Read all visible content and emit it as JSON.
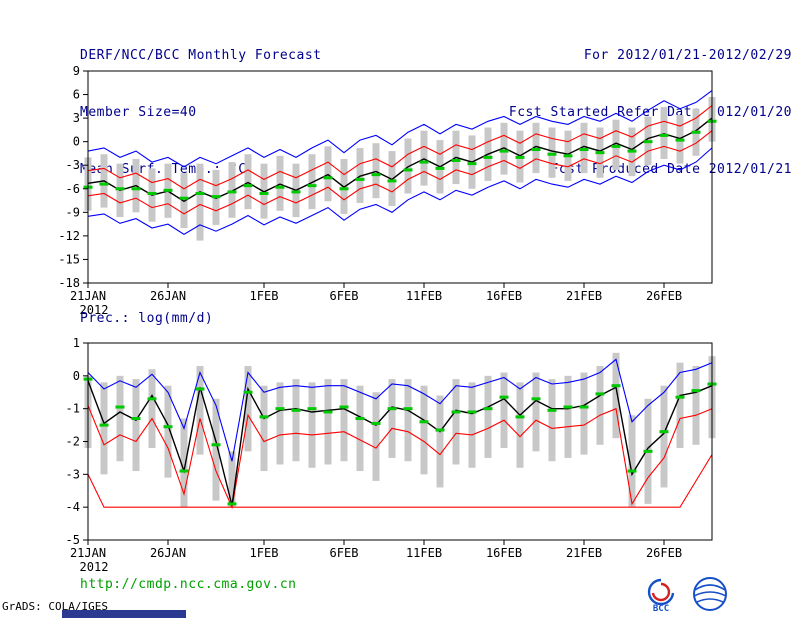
{
  "header": {
    "left": [
      "DERF/NCC/BCC Monthly Forecast",
      "Member Size=40",
      "Mean Surf. Temp.: °C"
    ],
    "right": [
      "For 2012/01/21-2012/02/29",
      "Fcst Started Refer Date 2012/01/20",
      "Fcst Produced Date 2012/01/21"
    ]
  },
  "footer": {
    "url": "http://cmdp.ncc.cma.gov.cn",
    "credit": "GrADS: COLA/IGES",
    "logos": [
      {
        "label": "BCC"
      }
    ]
  },
  "colors": {
    "header_text": "#00008b",
    "url_text": "#00a000",
    "ensemble_bar": "#c8c8c8",
    "max_min_line": "#0000ff",
    "quartile_line": "#ff0000",
    "mean_line": "#000000",
    "marker": "#00c800"
  },
  "chart_data": [
    {
      "type": "line",
      "title": "Mean Surf. Temp.: °C",
      "xlabel": "",
      "ylabel": "",
      "grid": false,
      "legend": "none",
      "ylim": [
        -18,
        9
      ],
      "yticks": [
        9,
        6,
        3,
        0,
        -3,
        -6,
        -9,
        -12,
        -15,
        -18
      ],
      "x_tick_labels": [
        "21JAN",
        "26JAN",
        "1FEB",
        "6FEB",
        "11FEB",
        "16FEB",
        "21FEB",
        "26FEB"
      ],
      "x_tick_indices": [
        0,
        5,
        11,
        16,
        21,
        26,
        31,
        36
      ],
      "x_year_label": "2012",
      "series": [
        {
          "name": "ensemble-max",
          "color": "#0000ff",
          "values": [
            -1.2,
            -0.8,
            -2.0,
            -1.2,
            -2.6,
            -2.0,
            -3.2,
            -2.0,
            -2.8,
            -1.8,
            -0.8,
            -2.0,
            -1.0,
            -2.0,
            -0.8,
            0.2,
            -1.4,
            0.2,
            0.8,
            -0.4,
            1.2,
            2.2,
            1.0,
            2.2,
            1.6,
            2.6,
            3.2,
            2.2,
            3.2,
            2.6,
            2.2,
            3.2,
            2.6,
            3.6,
            2.6,
            4.0,
            5.2,
            4.2,
            5.0,
            6.5
          ]
        },
        {
          "name": "ensemble-min",
          "color": "#0000ff",
          "values": [
            -9.5,
            -9.2,
            -10.4,
            -9.8,
            -11.0,
            -10.5,
            -11.8,
            -10.6,
            -11.4,
            -10.5,
            -9.4,
            -10.6,
            -9.6,
            -10.4,
            -9.4,
            -8.4,
            -10.0,
            -8.6,
            -8.0,
            -9.0,
            -7.4,
            -6.4,
            -7.4,
            -6.2,
            -6.8,
            -5.8,
            -5.0,
            -6.0,
            -4.8,
            -5.4,
            -5.8,
            -4.8,
            -5.4,
            -4.4,
            -5.2,
            -3.8,
            -3.0,
            -3.6,
            -2.6,
            -0.8
          ]
        },
        {
          "name": "upper-quartile",
          "color": "#ff0000",
          "values": [
            -3.7,
            -3.4,
            -4.6,
            -4.0,
            -5.2,
            -4.7,
            -6.0,
            -4.8,
            -5.6,
            -4.7,
            -3.6,
            -4.8,
            -3.8,
            -4.6,
            -3.6,
            -2.6,
            -4.2,
            -2.8,
            -2.2,
            -3.2,
            -1.6,
            -0.6,
            -1.6,
            -0.4,
            -1.0,
            0.0,
            0.8,
            -0.2,
            1.0,
            0.4,
            0.0,
            1.0,
            0.4,
            1.4,
            0.6,
            2.0,
            2.6,
            2.0,
            3.0,
            4.6
          ]
        },
        {
          "name": "lower-quartile",
          "color": "#ff0000",
          "values": [
            -6.9,
            -6.6,
            -7.8,
            -7.2,
            -8.4,
            -7.9,
            -9.2,
            -8.0,
            -8.8,
            -7.9,
            -6.8,
            -8.0,
            -7.0,
            -7.8,
            -6.8,
            -5.8,
            -7.4,
            -6.0,
            -5.4,
            -6.4,
            -4.8,
            -3.8,
            -4.8,
            -3.6,
            -4.2,
            -3.2,
            -2.4,
            -3.4,
            -2.2,
            -2.8,
            -3.2,
            -2.2,
            -2.8,
            -1.8,
            -2.6,
            -1.2,
            -0.6,
            -1.2,
            -0.2,
            1.4
          ]
        },
        {
          "name": "ensemble-mean",
          "color": "#000000",
          "values": [
            -5.3,
            -5.0,
            -6.2,
            -5.6,
            -6.8,
            -6.3,
            -7.6,
            -6.4,
            -7.2,
            -6.3,
            -5.2,
            -6.4,
            -5.4,
            -6.2,
            -5.2,
            -4.2,
            -5.8,
            -4.4,
            -3.8,
            -4.8,
            -3.2,
            -2.2,
            -3.2,
            -2.0,
            -2.6,
            -1.6,
            -0.8,
            -1.8,
            -0.6,
            -1.2,
            -1.6,
            -0.6,
            -1.2,
            -0.2,
            -1.0,
            0.4,
            1.0,
            0.4,
            1.4,
            3.0
          ]
        }
      ],
      "markers": {
        "name": "member-median-mark",
        "color": "#00c800",
        "values": [
          -5.8,
          -5.4,
          -6.0,
          -6.0,
          -6.6,
          -6.2,
          -7.2,
          -6.6,
          -7.0,
          -6.4,
          -5.6,
          -6.6,
          -5.8,
          -6.4,
          -5.6,
          -4.6,
          -6.0,
          -4.8,
          -4.2,
          -5.0,
          -3.6,
          -2.6,
          -3.4,
          -2.4,
          -2.8,
          -2.0,
          -1.2,
          -2.0,
          -1.0,
          -1.6,
          -1.8,
          -1.0,
          -1.4,
          -0.6,
          -1.2,
          0.0,
          0.8,
          0.2,
          1.2,
          2.6
        ]
      },
      "bars": {
        "name": "ensemble-spread",
        "color": "#c8c8c8",
        "top": [
          -2.0,
          -1.6,
          -2.8,
          -2.2,
          -3.4,
          -2.8,
          -4.0,
          -2.8,
          -3.6,
          -2.6,
          -1.6,
          -2.8,
          -1.8,
          -2.8,
          -1.6,
          -0.6,
          -2.2,
          -0.8,
          -0.2,
          -1.2,
          0.4,
          1.4,
          0.2,
          1.4,
          0.8,
          1.8,
          2.4,
          1.4,
          2.4,
          1.8,
          1.4,
          2.4,
          1.8,
          2.8,
          1.8,
          3.2,
          4.4,
          3.4,
          4.2,
          5.7
        ],
        "bottom": [
          -8.8,
          -8.4,
          -9.6,
          -9.0,
          -10.2,
          -9.7,
          -11.0,
          -12.6,
          -10.6,
          -9.7,
          -8.6,
          -9.8,
          -8.8,
          -9.6,
          -8.6,
          -7.6,
          -9.2,
          -7.8,
          -7.2,
          -8.2,
          -6.6,
          -5.6,
          -6.6,
          -5.4,
          -6.0,
          -5.0,
          -4.2,
          -5.2,
          -4.0,
          -4.6,
          -5.0,
          -4.0,
          -4.6,
          -3.6,
          -4.4,
          -3.0,
          -2.2,
          -2.8,
          -1.8,
          0.0
        ]
      }
    },
    {
      "type": "line",
      "title": "Prec.: log(mm/d)",
      "xlabel": "",
      "ylabel": "",
      "grid": false,
      "legend": "none",
      "ylim": [
        -5,
        1
      ],
      "yticks": [
        1,
        0,
        -1,
        -2,
        -3,
        -4,
        -5
      ],
      "x_tick_labels": [
        "21JAN",
        "26JAN",
        "1FEB",
        "6FEB",
        "11FEB",
        "16FEB",
        "21FEB",
        "26FEB"
      ],
      "x_tick_indices": [
        0,
        5,
        11,
        16,
        21,
        26,
        31,
        36
      ],
      "x_year_label": "2012",
      "series": [
        {
          "name": "ensemble-max",
          "color": "#0000ff",
          "values": [
            0.1,
            -0.4,
            -0.15,
            -0.35,
            0.05,
            -0.5,
            -1.6,
            0.1,
            -0.9,
            -2.6,
            0.1,
            -0.5,
            -0.35,
            -0.3,
            -0.35,
            -0.3,
            -0.3,
            -0.5,
            -0.7,
            -0.25,
            -0.3,
            -0.55,
            -0.85,
            -0.3,
            -0.35,
            -0.2,
            -0.05,
            -0.4,
            -0.05,
            -0.25,
            -0.2,
            -0.1,
            0.1,
            0.5,
            -1.4,
            -0.9,
            -0.5,
            0.1,
            0.2,
            0.4
          ]
        },
        {
          "name": "lower-quartile",
          "color": "#ff0000",
          "values": [
            -0.9,
            -2.1,
            -1.8,
            -2.0,
            -1.3,
            -2.2,
            -3.6,
            -1.3,
            -2.9,
            -4.0,
            -1.2,
            -2.0,
            -1.8,
            -1.75,
            -1.8,
            -1.75,
            -1.7,
            -1.95,
            -2.2,
            -1.6,
            -1.7,
            -2.0,
            -2.4,
            -1.75,
            -1.8,
            -1.6,
            -1.35,
            -1.85,
            -1.35,
            -1.6,
            -1.55,
            -1.5,
            -1.2,
            -1.0,
            -3.9,
            -3.1,
            -2.5,
            -1.3,
            -1.2,
            -1.0
          ]
        },
        {
          "name": "min-floor",
          "color": "#ff0000",
          "values": [
            -3.0,
            -4,
            -4,
            -4,
            -4,
            -4,
            -4,
            -4,
            -4,
            -4,
            -4,
            -4,
            -4,
            -4,
            -4,
            -4,
            -4,
            -4,
            -4,
            -4,
            -4,
            -4,
            -4,
            -4,
            -4,
            -4,
            -4,
            -4,
            -4,
            -4,
            -4,
            -4,
            -4,
            -4,
            -4,
            -4,
            -4,
            -4,
            -3.2,
            -2.4
          ]
        },
        {
          "name": "ensemble-mean",
          "color": "#000000",
          "values": [
            -0.15,
            -1.45,
            -1.1,
            -1.35,
            -0.6,
            -1.5,
            -2.9,
            -0.35,
            -2.0,
            -3.95,
            -0.4,
            -1.3,
            -1.05,
            -1.0,
            -1.1,
            -1.05,
            -1.0,
            -1.25,
            -1.5,
            -0.95,
            -1.05,
            -1.35,
            -1.7,
            -1.05,
            -1.15,
            -0.95,
            -0.7,
            -1.2,
            -0.75,
            -1.0,
            -1.0,
            -0.9,
            -0.6,
            -0.35,
            -3.0,
            -2.2,
            -1.75,
            -0.6,
            -0.5,
            -0.3
          ]
        }
      ],
      "markers": {
        "name": "member-median-mark",
        "color": "#00c800",
        "values": [
          -0.1,
          -1.5,
          -0.95,
          -1.3,
          -0.7,
          -1.55,
          -2.9,
          -0.4,
          -2.1,
          -3.9,
          -0.5,
          -1.25,
          -1.0,
          -1.05,
          -1.0,
          -1.1,
          -0.95,
          -1.3,
          -1.45,
          -1.0,
          -1.0,
          -1.4,
          -1.65,
          -1.1,
          -1.1,
          -1.0,
          -0.65,
          -1.25,
          -0.7,
          -1.05,
          -0.95,
          -0.95,
          -0.55,
          -0.3,
          -2.9,
          -2.3,
          -1.7,
          -0.65,
          -0.45,
          -0.25
        ]
      },
      "bars": {
        "name": "ensemble-spread",
        "color": "#c8c8c8",
        "top": [
          0.0,
          -0.2,
          0.0,
          -0.1,
          0.2,
          -0.3,
          -1.3,
          0.3,
          -0.7,
          -2.3,
          0.3,
          -0.3,
          -0.2,
          -0.1,
          -0.2,
          -0.1,
          -0.1,
          -0.3,
          -0.5,
          -0.1,
          -0.1,
          -0.3,
          -0.6,
          -0.1,
          -0.2,
          0.0,
          0.1,
          -0.2,
          0.1,
          -0.1,
          0.0,
          0.1,
          0.3,
          0.7,
          -1.2,
          -0.7,
          -0.3,
          0.4,
          0.3,
          0.6
        ],
        "bottom": [
          -2.2,
          -3.0,
          -2.6,
          -2.9,
          -2.2,
          -3.1,
          -4.0,
          -2.4,
          -3.8,
          -4.0,
          -2.3,
          -2.9,
          -2.7,
          -2.6,
          -2.8,
          -2.7,
          -2.6,
          -2.9,
          -3.2,
          -2.5,
          -2.6,
          -3.0,
          -3.4,
          -2.7,
          -2.8,
          -2.5,
          -2.2,
          -2.8,
          -2.3,
          -2.6,
          -2.5,
          -2.4,
          -2.1,
          -1.9,
          -4.0,
          -3.9,
          -3.4,
          -2.2,
          -2.1,
          -1.9
        ]
      }
    }
  ]
}
